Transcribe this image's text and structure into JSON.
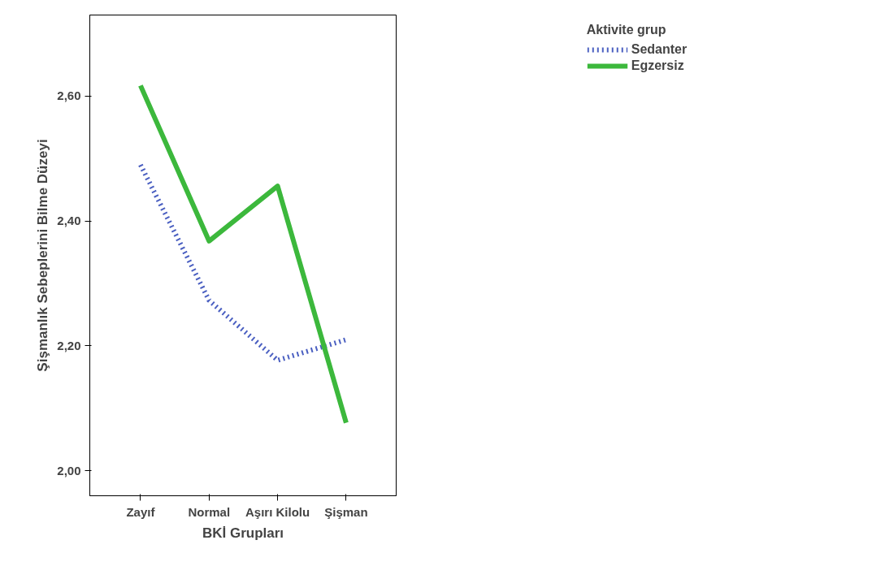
{
  "chart_data": {
    "type": "line",
    "xlabel": "BKİ Grupları",
    "ylabel": "Şişmanlık Sebeplerini Bilme Düzeyi",
    "legend_title": "Aktivite grup",
    "legend": "top right",
    "grid": false,
    "marker": "none",
    "categories": [
      "Zayıf",
      "Normal",
      "Aşırı Kilolu",
      "Şişman"
    ],
    "ylim": [
      1.96,
      2.73
    ],
    "yticks": [
      {
        "value": 2.0,
        "label": "2,00"
      },
      {
        "value": 2.2,
        "label": "2,20"
      },
      {
        "value": 2.4,
        "label": "2,40"
      },
      {
        "value": 2.6,
        "label": "2,60"
      }
    ],
    "series": [
      {
        "name": "Sedanter",
        "color": "#4a5fc1",
        "line_style": "dotted",
        "values": [
          2.49,
          2.273,
          2.177,
          2.21
        ]
      },
      {
        "name": "Egzersiz",
        "color": "#3cb83c",
        "line_style": "solid",
        "values": [
          2.617,
          2.368,
          2.456,
          2.077
        ]
      }
    ]
  }
}
